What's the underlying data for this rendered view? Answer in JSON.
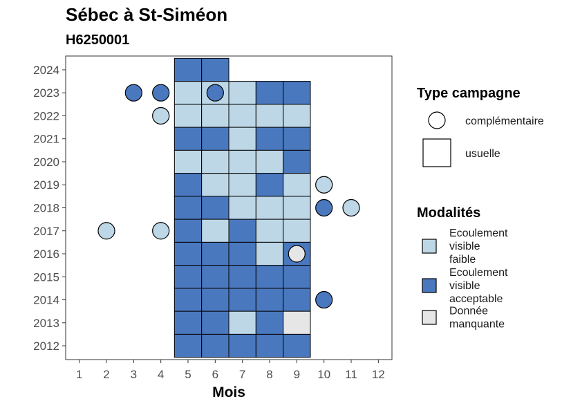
{
  "chart_data": {
    "type": "heatmap",
    "title": "Sébec à St-Siméon",
    "subtitle": "H6250001",
    "xlabel": "Mois",
    "ylabel": "",
    "x_ticks": [
      1,
      2,
      3,
      4,
      5,
      6,
      7,
      8,
      9,
      10,
      11,
      12
    ],
    "y_ticks": [
      2012,
      2013,
      2014,
      2015,
      2016,
      2017,
      2018,
      2019,
      2020,
      2021,
      2022,
      2023,
      2024
    ],
    "xlim": [
      0.5,
      12.5
    ],
    "ylim": [
      2011.4,
      2024.6
    ],
    "colors": {
      "faible": "#bdd7e7",
      "acceptable": "#4a78be",
      "manquante": "#e6e6e6"
    },
    "legend_type": {
      "title": "Type campagne",
      "items": [
        {
          "shape": "circle",
          "label": "complémentaire"
        },
        {
          "shape": "square",
          "label": "usuelle"
        }
      ]
    },
    "legend_modalites": {
      "title": "Modalités",
      "items": [
        {
          "key": "faible",
          "lines": [
            "Ecoulement",
            "visible",
            "faible"
          ]
        },
        {
          "key": "acceptable",
          "lines": [
            "Ecoulement",
            "visible",
            "acceptable"
          ]
        },
        {
          "key": "manquante",
          "lines": [
            "Donnée",
            "manquante"
          ]
        }
      ]
    },
    "tiles": [
      {
        "year": 2024,
        "month": 5,
        "v": "acceptable"
      },
      {
        "year": 2024,
        "month": 6,
        "v": "acceptable"
      },
      {
        "year": 2023,
        "month": 5,
        "v": "faible"
      },
      {
        "year": 2023,
        "month": 6,
        "v": "faible"
      },
      {
        "year": 2023,
        "month": 7,
        "v": "faible"
      },
      {
        "year": 2023,
        "month": 8,
        "v": "acceptable"
      },
      {
        "year": 2023,
        "month": 9,
        "v": "acceptable"
      },
      {
        "year": 2022,
        "month": 5,
        "v": "faible"
      },
      {
        "year": 2022,
        "month": 6,
        "v": "faible"
      },
      {
        "year": 2022,
        "month": 7,
        "v": "faible"
      },
      {
        "year": 2022,
        "month": 8,
        "v": "faible"
      },
      {
        "year": 2022,
        "month": 9,
        "v": "faible"
      },
      {
        "year": 2021,
        "month": 5,
        "v": "acceptable"
      },
      {
        "year": 2021,
        "month": 6,
        "v": "acceptable"
      },
      {
        "year": 2021,
        "month": 7,
        "v": "faible"
      },
      {
        "year": 2021,
        "month": 8,
        "v": "acceptable"
      },
      {
        "year": 2021,
        "month": 9,
        "v": "acceptable"
      },
      {
        "year": 2020,
        "month": 5,
        "v": "faible"
      },
      {
        "year": 2020,
        "month": 6,
        "v": "faible"
      },
      {
        "year": 2020,
        "month": 7,
        "v": "faible"
      },
      {
        "year": 2020,
        "month": 8,
        "v": "faible"
      },
      {
        "year": 2020,
        "month": 9,
        "v": "acceptable"
      },
      {
        "year": 2019,
        "month": 5,
        "v": "acceptable"
      },
      {
        "year": 2019,
        "month": 6,
        "v": "faible"
      },
      {
        "year": 2019,
        "month": 7,
        "v": "faible"
      },
      {
        "year": 2019,
        "month": 8,
        "v": "acceptable"
      },
      {
        "year": 2019,
        "month": 9,
        "v": "faible"
      },
      {
        "year": 2018,
        "month": 5,
        "v": "acceptable"
      },
      {
        "year": 2018,
        "month": 6,
        "v": "acceptable"
      },
      {
        "year": 2018,
        "month": 7,
        "v": "faible"
      },
      {
        "year": 2018,
        "month": 8,
        "v": "faible"
      },
      {
        "year": 2018,
        "month": 9,
        "v": "faible"
      },
      {
        "year": 2017,
        "month": 5,
        "v": "acceptable"
      },
      {
        "year": 2017,
        "month": 6,
        "v": "faible"
      },
      {
        "year": 2017,
        "month": 7,
        "v": "acceptable"
      },
      {
        "year": 2017,
        "month": 8,
        "v": "faible"
      },
      {
        "year": 2017,
        "month": 9,
        "v": "faible"
      },
      {
        "year": 2016,
        "month": 5,
        "v": "acceptable"
      },
      {
        "year": 2016,
        "month": 6,
        "v": "acceptable"
      },
      {
        "year": 2016,
        "month": 7,
        "v": "acceptable"
      },
      {
        "year": 2016,
        "month": 8,
        "v": "faible"
      },
      {
        "year": 2016,
        "month": 9,
        "v": "acceptable"
      },
      {
        "year": 2015,
        "month": 5,
        "v": "acceptable"
      },
      {
        "year": 2015,
        "month": 6,
        "v": "acceptable"
      },
      {
        "year": 2015,
        "month": 7,
        "v": "acceptable"
      },
      {
        "year": 2015,
        "month": 8,
        "v": "acceptable"
      },
      {
        "year": 2015,
        "month": 9,
        "v": "acceptable"
      },
      {
        "year": 2014,
        "month": 5,
        "v": "acceptable"
      },
      {
        "year": 2014,
        "month": 6,
        "v": "acceptable"
      },
      {
        "year": 2014,
        "month": 7,
        "v": "acceptable"
      },
      {
        "year": 2014,
        "month": 8,
        "v": "acceptable"
      },
      {
        "year": 2014,
        "month": 9,
        "v": "acceptable"
      },
      {
        "year": 2013,
        "month": 5,
        "v": "acceptable"
      },
      {
        "year": 2013,
        "month": 6,
        "v": "acceptable"
      },
      {
        "year": 2013,
        "month": 7,
        "v": "faible"
      },
      {
        "year": 2013,
        "month": 8,
        "v": "acceptable"
      },
      {
        "year": 2013,
        "month": 9,
        "v": "manquante"
      },
      {
        "year": 2012,
        "month": 5,
        "v": "acceptable"
      },
      {
        "year": 2012,
        "month": 6,
        "v": "acceptable"
      },
      {
        "year": 2012,
        "month": 7,
        "v": "acceptable"
      },
      {
        "year": 2012,
        "month": 8,
        "v": "acceptable"
      },
      {
        "year": 2012,
        "month": 9,
        "v": "acceptable"
      }
    ],
    "points": [
      {
        "year": 2023,
        "month": 3,
        "v": "acceptable"
      },
      {
        "year": 2023,
        "month": 4,
        "v": "acceptable"
      },
      {
        "year": 2023,
        "month": 6,
        "v": "acceptable"
      },
      {
        "year": 2022,
        "month": 4,
        "v": "faible"
      },
      {
        "year": 2019,
        "month": 10,
        "v": "faible"
      },
      {
        "year": 2018,
        "month": 10,
        "v": "acceptable"
      },
      {
        "year": 2018,
        "month": 11,
        "v": "faible"
      },
      {
        "year": 2017,
        "month": 2,
        "v": "faible"
      },
      {
        "year": 2017,
        "month": 4,
        "v": "faible"
      },
      {
        "year": 2016,
        "month": 9,
        "v": "manquante"
      },
      {
        "year": 2014,
        "month": 10,
        "v": "acceptable"
      }
    ]
  }
}
